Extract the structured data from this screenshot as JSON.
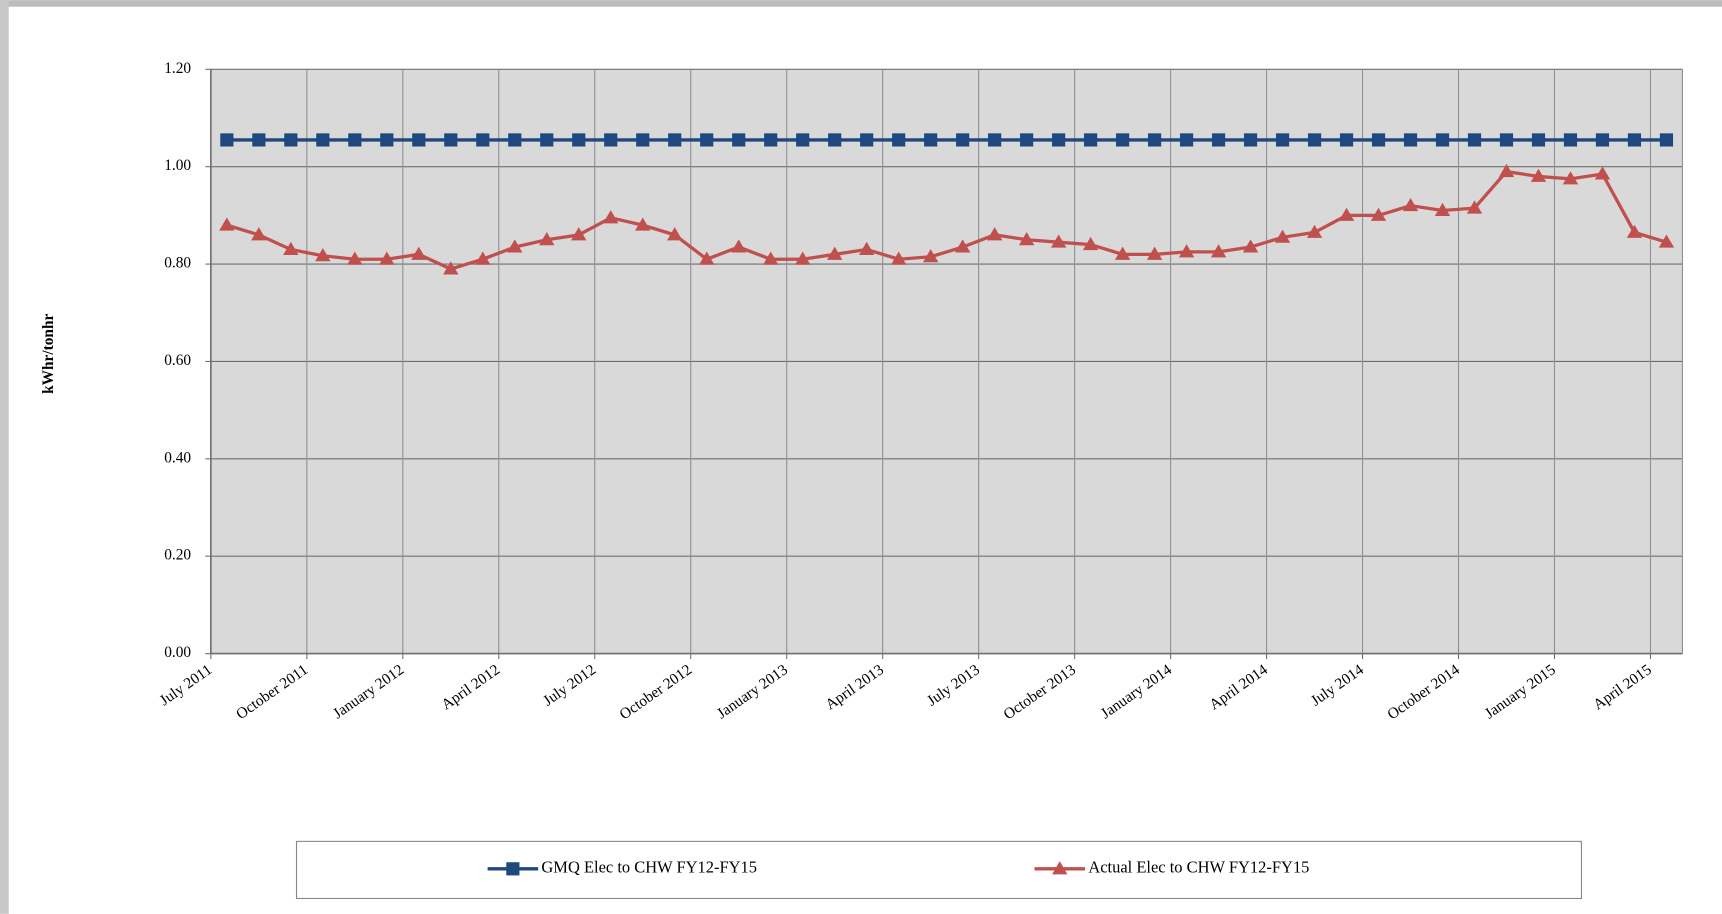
{
  "chart_data": {
    "type": "line",
    "y_label": "kWhr/tonhr",
    "categories": [
      "July 2011",
      null,
      null,
      "October 2011",
      null,
      null,
      "January 2012",
      null,
      null,
      "April 2012",
      null,
      null,
      "July 2012",
      null,
      null,
      "October 2012",
      null,
      null,
      "January 2013",
      null,
      null,
      "April 2013",
      null,
      null,
      "July 2013",
      null,
      null,
      "October 2013",
      null,
      null,
      "January 2014",
      null,
      null,
      "April 2014",
      null,
      null,
      "July 2014",
      null,
      null,
      "October 2014",
      null,
      null,
      "January 2015",
      null,
      null,
      "April 2015"
    ],
    "series": [
      {
        "name": "GMQ Elec to CHW FY12-FY15",
        "color": "#1f497d",
        "marker": "square",
        "values": [
          1.055,
          1.055,
          1.055,
          1.055,
          1.055,
          1.055,
          1.055,
          1.055,
          1.055,
          1.055,
          1.055,
          1.055,
          1.055,
          1.055,
          1.055,
          1.055,
          1.055,
          1.055,
          1.055,
          1.055,
          1.055,
          1.055,
          1.055,
          1.055,
          1.055,
          1.055,
          1.055,
          1.055,
          1.055,
          1.055,
          1.055,
          1.055,
          1.055,
          1.055,
          1.055,
          1.055,
          1.055,
          1.055,
          1.055,
          1.055,
          1.055,
          1.055,
          1.055,
          1.055,
          1.055,
          1.055
        ]
      },
      {
        "name": "Actual Elec to CHW FY12-FY15",
        "color": "#c0504d",
        "marker": "triangle",
        "values": [
          0.88,
          0.86,
          0.83,
          0.817,
          0.81,
          0.81,
          0.82,
          0.79,
          0.81,
          0.835,
          0.85,
          0.86,
          0.895,
          0.88,
          0.86,
          0.81,
          0.835,
          0.81,
          0.81,
          0.82,
          0.83,
          0.81,
          0.815,
          0.835,
          0.86,
          0.85,
          0.845,
          0.84,
          0.82,
          0.82,
          0.825,
          0.825,
          0.835,
          0.855,
          0.865,
          0.9,
          0.9,
          0.92,
          0.91,
          0.915,
          0.99,
          0.98,
          0.975,
          0.985,
          0.865,
          0.845
        ]
      }
    ],
    "ylim": [
      0,
      1.2
    ],
    "yticks": [
      {
        "value": 0,
        "label": "0.00"
      },
      {
        "value": 0.2,
        "label": "0.20"
      },
      {
        "value": 0.4,
        "label": "0.40"
      },
      {
        "value": 0.6,
        "label": "0.60"
      },
      {
        "value": 0.8,
        "label": "0.80"
      },
      {
        "value": 1.0,
        "label": "1.00"
      },
      {
        "value": 1.2,
        "label": "1.20"
      }
    ],
    "grid": true,
    "plot_background": "#d9d9d9",
    "legend": "bottom"
  }
}
